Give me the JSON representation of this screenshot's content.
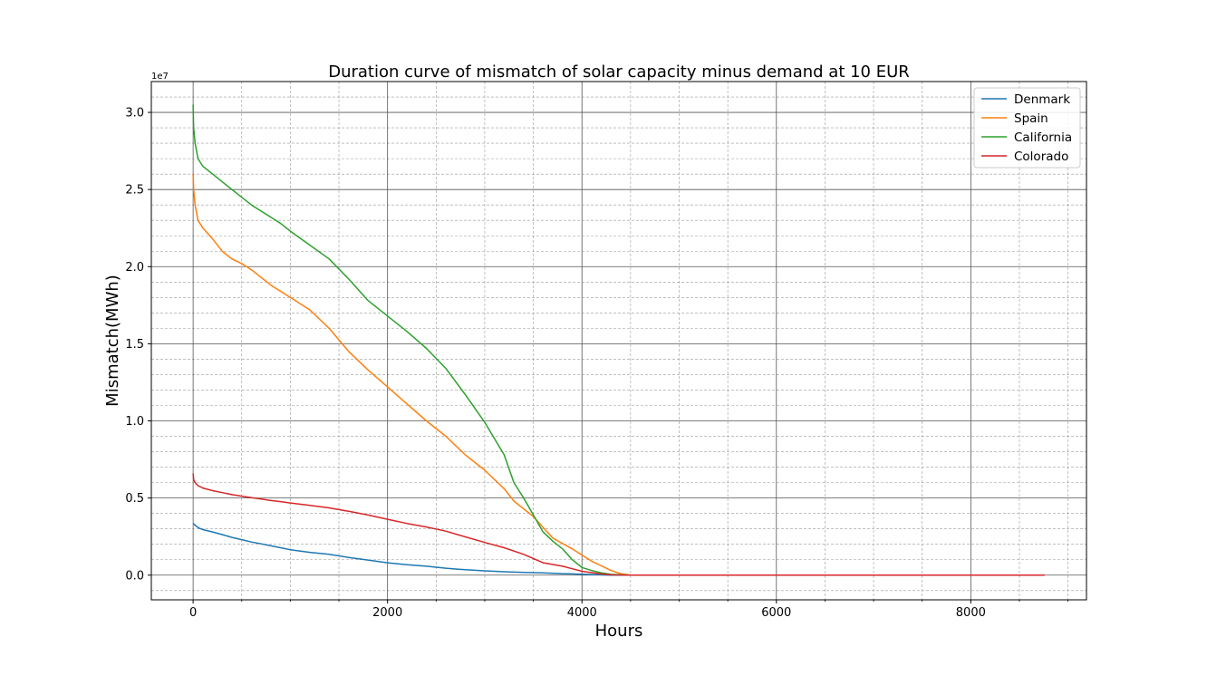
{
  "chart_data": {
    "type": "line",
    "title": "Duration curve of mismatch of solar capacity minus demand at 10 EUR",
    "xlabel": "Hours",
    "ylabel": "Mismatch(MWh)",
    "y_offset_text": "1e7",
    "y_scale": 10000000,
    "xlim": [
      -430,
      9190
    ],
    "ylim": [
      -0.16,
      3.2
    ],
    "x_ticks": [
      0,
      2000,
      4000,
      6000,
      8000
    ],
    "x_tick_labels": [
      "0",
      "2000",
      "4000",
      "6000",
      "8000"
    ],
    "y_ticks": [
      0.0,
      0.5,
      1.0,
      1.5,
      2.0,
      2.5,
      3.0
    ],
    "y_tick_labels": [
      "0.0",
      "0.5",
      "1.0",
      "1.5",
      "2.0",
      "2.5",
      "3.0"
    ],
    "grid": {
      "major": true,
      "minor": true
    },
    "legend_position": "top-right",
    "series": [
      {
        "name": "Denmark",
        "color": "#1f77b4",
        "x": [
          0,
          10,
          30,
          60,
          100,
          200,
          300,
          400,
          500,
          600,
          700,
          800,
          900,
          1000,
          1200,
          1400,
          1600,
          1800,
          2000,
          2200,
          2400,
          2600,
          2800,
          3000,
          3200,
          3400,
          3600,
          3800,
          4000,
          4200,
          4300,
          4500,
          6000,
          8760
        ],
        "y": [
          0.335,
          0.33,
          0.318,
          0.305,
          0.295,
          0.28,
          0.263,
          0.245,
          0.23,
          0.215,
          0.203,
          0.19,
          0.178,
          0.165,
          0.148,
          0.135,
          0.115,
          0.098,
          0.08,
          0.068,
          0.058,
          0.045,
          0.035,
          0.028,
          0.022,
          0.018,
          0.015,
          0.01,
          0.006,
          0.002,
          0,
          0,
          0,
          0
        ]
      },
      {
        "name": "Spain",
        "color": "#ff7f0e",
        "x": [
          0,
          5,
          20,
          50,
          100,
          200,
          300,
          400,
          500,
          600,
          700,
          800,
          900,
          1000,
          1200,
          1400,
          1600,
          1800,
          2000,
          2200,
          2400,
          2600,
          2800,
          3000,
          3200,
          3300,
          3500,
          3600,
          3700,
          3900,
          4100,
          4200,
          4300,
          4400,
          4500,
          6000,
          8760
        ],
        "y": [
          2.6,
          2.5,
          2.4,
          2.3,
          2.25,
          2.18,
          2.1,
          2.05,
          2.02,
          1.98,
          1.93,
          1.88,
          1.84,
          1.8,
          1.72,
          1.6,
          1.45,
          1.33,
          1.22,
          1.11,
          1.0,
          0.9,
          0.78,
          0.68,
          0.56,
          0.48,
          0.38,
          0.31,
          0.24,
          0.17,
          0.09,
          0.06,
          0.03,
          0.01,
          0,
          0,
          0
        ]
      },
      {
        "name": "California",
        "color": "#2ca02c",
        "x": [
          0,
          5,
          20,
          50,
          100,
          200,
          300,
          400,
          500,
          600,
          700,
          800,
          900,
          1000,
          1200,
          1400,
          1600,
          1800,
          2000,
          2200,
          2400,
          2600,
          2800,
          3000,
          3200,
          3300,
          3400,
          3500,
          3600,
          3700,
          3800,
          3900,
          4000,
          4100,
          4200,
          4300,
          4500,
          6000,
          8760
        ],
        "y": [
          3.05,
          2.9,
          2.8,
          2.7,
          2.65,
          2.6,
          2.55,
          2.5,
          2.45,
          2.4,
          2.36,
          2.32,
          2.28,
          2.23,
          2.14,
          2.05,
          1.92,
          1.78,
          1.68,
          1.58,
          1.47,
          1.34,
          1.17,
          0.99,
          0.78,
          0.6,
          0.5,
          0.39,
          0.28,
          0.22,
          0.17,
          0.1,
          0.05,
          0.03,
          0.015,
          0.005,
          0,
          0,
          0
        ]
      },
      {
        "name": "Colorado",
        "color": "#d62728",
        "x": [
          0,
          5,
          20,
          50,
          100,
          200,
          300,
          400,
          500,
          600,
          700,
          800,
          900,
          1000,
          1200,
          1400,
          1600,
          1800,
          2000,
          2200,
          2400,
          2600,
          2800,
          3000,
          3200,
          3400,
          3600,
          3800,
          4000,
          4200,
          4300,
          4500,
          6000,
          8760
        ],
        "y": [
          0.66,
          0.62,
          0.6,
          0.58,
          0.565,
          0.548,
          0.535,
          0.522,
          0.512,
          0.502,
          0.493,
          0.484,
          0.477,
          0.468,
          0.452,
          0.436,
          0.414,
          0.39,
          0.362,
          0.335,
          0.312,
          0.285,
          0.248,
          0.212,
          0.178,
          0.135,
          0.08,
          0.058,
          0.025,
          0.008,
          0.002,
          0,
          0,
          0
        ]
      }
    ]
  }
}
